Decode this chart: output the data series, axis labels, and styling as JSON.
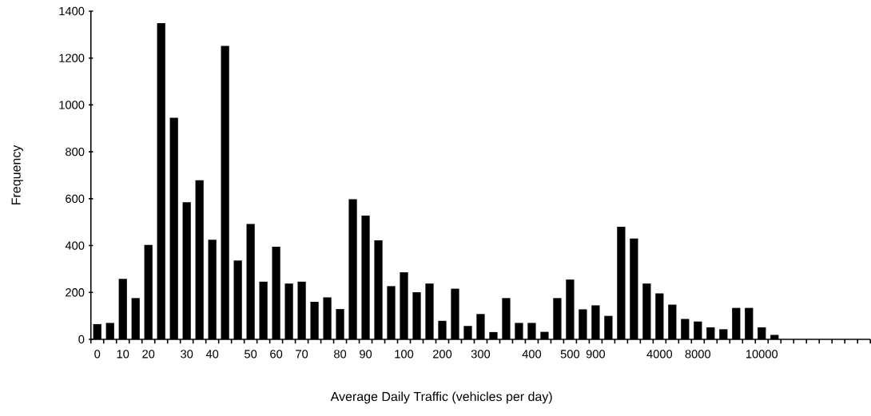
{
  "chart_data": {
    "type": "bar",
    "xlabel": "Average Daily Traffic (vehicles per day)",
    "ylabel": "Frequency",
    "color": "#000000",
    "categories": [
      "0",
      null,
      "10",
      null,
      "20",
      null,
      null,
      "30",
      null,
      "40",
      null,
      null,
      "50",
      null,
      "60",
      null,
      "70",
      null,
      null,
      "80",
      null,
      "90",
      null,
      null,
      "100",
      null,
      null,
      "200",
      null,
      null,
      "300",
      null,
      null,
      null,
      "400",
      null,
      null,
      "500",
      null,
      "900",
      null,
      null,
      null,
      null,
      "4000",
      null,
      null,
      "8000",
      null,
      null,
      null,
      null,
      "10000",
      null,
      null,
      null,
      null,
      null,
      null,
      null,
      null
    ],
    "values": [
      65,
      70,
      258,
      176,
      403,
      1349,
      945,
      585,
      679,
      425,
      1252,
      336,
      492,
      246,
      395,
      238,
      246,
      160,
      179,
      129,
      598,
      528,
      422,
      227,
      286,
      201,
      238,
      79,
      216,
      57,
      108,
      31,
      176,
      70,
      70,
      32,
      176,
      255,
      128,
      145,
      100,
      480,
      430,
      238,
      196,
      148,
      87,
      76,
      51,
      43,
      134,
      134,
      51,
      19,
      null,
      null,
      null,
      null,
      null,
      null,
      null
    ],
    "ylim": [
      0,
      1400
    ],
    "yticks": [
      0,
      200,
      400,
      600,
      800,
      1000,
      1200,
      1400
    ]
  }
}
